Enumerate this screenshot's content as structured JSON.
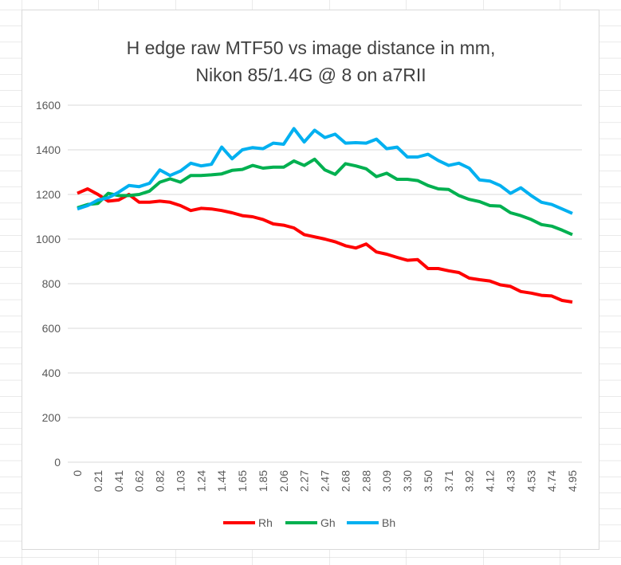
{
  "chart_data": {
    "type": "line",
    "title": [
      "H edge raw MTF50 vs image distance in mm,",
      "Nikon 85/1.4G @ 8 on a7RII"
    ],
    "categories": [
      "0",
      null,
      "0.21",
      null,
      "0.41",
      null,
      "0.62",
      null,
      "0.82",
      null,
      "1.03",
      null,
      "1.24",
      null,
      "1.44",
      null,
      "1.65",
      null,
      "1.85",
      null,
      "2.06",
      null,
      "2.27",
      null,
      "2.47",
      null,
      "2.68",
      null,
      "2.88",
      null,
      "3.09",
      null,
      "3.30",
      null,
      "3.50",
      null,
      "3.71",
      null,
      "3.92",
      null,
      "4.12",
      null,
      "4.33",
      null,
      "4.53",
      null,
      "4.74",
      null,
      "4.95"
    ],
    "series": [
      {
        "name": "Rh",
        "color": "#ff0000",
        "values": [
          1205,
          1225,
          1200,
          1170,
          1175,
          1200,
          1165,
          1165,
          1170,
          1165,
          1150,
          1128,
          1138,
          1135,
          1128,
          1118,
          1105,
          1100,
          1088,
          1068,
          1062,
          1050,
          1020,
          1010,
          1000,
          988,
          970,
          960,
          978,
          942,
          932,
          918,
          905,
          908,
          868,
          868,
          858,
          850,
          825,
          818,
          812,
          795,
          788,
          765,
          758,
          748,
          745,
          725,
          718
        ]
      },
      {
        "name": "Gh",
        "color": "#00b050",
        "values": [
          1140,
          1155,
          1160,
          1205,
          1195,
          1195,
          1200,
          1215,
          1255,
          1270,
          1255,
          1285,
          1285,
          1288,
          1292,
          1308,
          1312,
          1330,
          1318,
          1322,
          1322,
          1350,
          1330,
          1358,
          1310,
          1290,
          1338,
          1328,
          1315,
          1280,
          1295,
          1268,
          1268,
          1262,
          1240,
          1225,
          1222,
          1195,
          1178,
          1168,
          1150,
          1148,
          1118,
          1105,
          1088,
          1065,
          1058,
          1040,
          1020
        ]
      },
      {
        "name": "Bh",
        "color": "#00b0f0",
        "values": [
          1135,
          1150,
          1175,
          1185,
          1210,
          1240,
          1235,
          1250,
          1310,
          1285,
          1305,
          1340,
          1328,
          1335,
          1412,
          1360,
          1400,
          1410,
          1405,
          1430,
          1425,
          1495,
          1435,
          1488,
          1455,
          1470,
          1430,
          1432,
          1430,
          1448,
          1405,
          1412,
          1368,
          1368,
          1380,
          1352,
          1330,
          1340,
          1318,
          1265,
          1260,
          1240,
          1205,
          1230,
          1195,
          1165,
          1155,
          1135,
          1115
        ]
      }
    ],
    "ylim": [
      0,
      1600
    ],
    "yticks": [
      0,
      200,
      400,
      600,
      800,
      1000,
      1200,
      1400,
      1600
    ],
    "grid": true,
    "legend": "bottom"
  }
}
